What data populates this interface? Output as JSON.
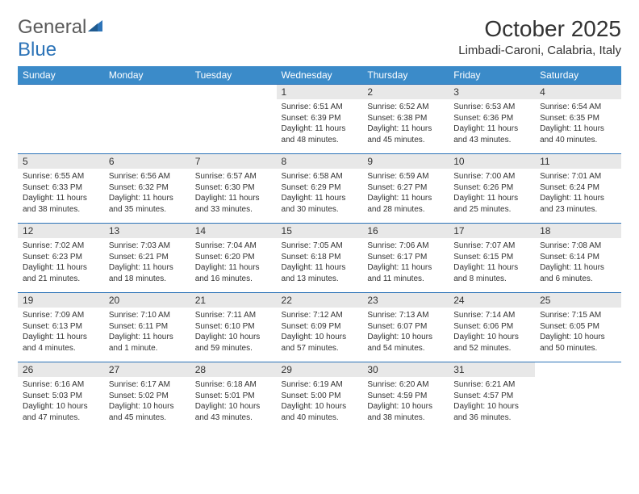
{
  "logo": {
    "text_part1": "General",
    "text_part2": "Blue",
    "color_gray": "#5a5a5a",
    "color_blue": "#2d74b8",
    "triangle_color": "#2d74b8"
  },
  "title": "October 2025",
  "location": "Limbadi-Caroni, Calabria, Italy",
  "header_bg": "#3b8bc9",
  "header_text_color": "#ffffff",
  "daynum_bg": "#e8e8e8",
  "border_color": "#2d74b8",
  "text_color": "#333333",
  "weekdays": [
    "Sunday",
    "Monday",
    "Tuesday",
    "Wednesday",
    "Thursday",
    "Friday",
    "Saturday"
  ],
  "weeks": [
    [
      null,
      null,
      null,
      {
        "n": "1",
        "sunrise": "Sunrise: 6:51 AM",
        "sunset": "Sunset: 6:39 PM",
        "daylight1": "Daylight: 11 hours",
        "daylight2": "and 48 minutes."
      },
      {
        "n": "2",
        "sunrise": "Sunrise: 6:52 AM",
        "sunset": "Sunset: 6:38 PM",
        "daylight1": "Daylight: 11 hours",
        "daylight2": "and 45 minutes."
      },
      {
        "n": "3",
        "sunrise": "Sunrise: 6:53 AM",
        "sunset": "Sunset: 6:36 PM",
        "daylight1": "Daylight: 11 hours",
        "daylight2": "and 43 minutes."
      },
      {
        "n": "4",
        "sunrise": "Sunrise: 6:54 AM",
        "sunset": "Sunset: 6:35 PM",
        "daylight1": "Daylight: 11 hours",
        "daylight2": "and 40 minutes."
      }
    ],
    [
      {
        "n": "5",
        "sunrise": "Sunrise: 6:55 AM",
        "sunset": "Sunset: 6:33 PM",
        "daylight1": "Daylight: 11 hours",
        "daylight2": "and 38 minutes."
      },
      {
        "n": "6",
        "sunrise": "Sunrise: 6:56 AM",
        "sunset": "Sunset: 6:32 PM",
        "daylight1": "Daylight: 11 hours",
        "daylight2": "and 35 minutes."
      },
      {
        "n": "7",
        "sunrise": "Sunrise: 6:57 AM",
        "sunset": "Sunset: 6:30 PM",
        "daylight1": "Daylight: 11 hours",
        "daylight2": "and 33 minutes."
      },
      {
        "n": "8",
        "sunrise": "Sunrise: 6:58 AM",
        "sunset": "Sunset: 6:29 PM",
        "daylight1": "Daylight: 11 hours",
        "daylight2": "and 30 minutes."
      },
      {
        "n": "9",
        "sunrise": "Sunrise: 6:59 AM",
        "sunset": "Sunset: 6:27 PM",
        "daylight1": "Daylight: 11 hours",
        "daylight2": "and 28 minutes."
      },
      {
        "n": "10",
        "sunrise": "Sunrise: 7:00 AM",
        "sunset": "Sunset: 6:26 PM",
        "daylight1": "Daylight: 11 hours",
        "daylight2": "and 25 minutes."
      },
      {
        "n": "11",
        "sunrise": "Sunrise: 7:01 AM",
        "sunset": "Sunset: 6:24 PM",
        "daylight1": "Daylight: 11 hours",
        "daylight2": "and 23 minutes."
      }
    ],
    [
      {
        "n": "12",
        "sunrise": "Sunrise: 7:02 AM",
        "sunset": "Sunset: 6:23 PM",
        "daylight1": "Daylight: 11 hours",
        "daylight2": "and 21 minutes."
      },
      {
        "n": "13",
        "sunrise": "Sunrise: 7:03 AM",
        "sunset": "Sunset: 6:21 PM",
        "daylight1": "Daylight: 11 hours",
        "daylight2": "and 18 minutes."
      },
      {
        "n": "14",
        "sunrise": "Sunrise: 7:04 AM",
        "sunset": "Sunset: 6:20 PM",
        "daylight1": "Daylight: 11 hours",
        "daylight2": "and 16 minutes."
      },
      {
        "n": "15",
        "sunrise": "Sunrise: 7:05 AM",
        "sunset": "Sunset: 6:18 PM",
        "daylight1": "Daylight: 11 hours",
        "daylight2": "and 13 minutes."
      },
      {
        "n": "16",
        "sunrise": "Sunrise: 7:06 AM",
        "sunset": "Sunset: 6:17 PM",
        "daylight1": "Daylight: 11 hours",
        "daylight2": "and 11 minutes."
      },
      {
        "n": "17",
        "sunrise": "Sunrise: 7:07 AM",
        "sunset": "Sunset: 6:15 PM",
        "daylight1": "Daylight: 11 hours",
        "daylight2": "and 8 minutes."
      },
      {
        "n": "18",
        "sunrise": "Sunrise: 7:08 AM",
        "sunset": "Sunset: 6:14 PM",
        "daylight1": "Daylight: 11 hours",
        "daylight2": "and 6 minutes."
      }
    ],
    [
      {
        "n": "19",
        "sunrise": "Sunrise: 7:09 AM",
        "sunset": "Sunset: 6:13 PM",
        "daylight1": "Daylight: 11 hours",
        "daylight2": "and 4 minutes."
      },
      {
        "n": "20",
        "sunrise": "Sunrise: 7:10 AM",
        "sunset": "Sunset: 6:11 PM",
        "daylight1": "Daylight: 11 hours",
        "daylight2": "and 1 minute."
      },
      {
        "n": "21",
        "sunrise": "Sunrise: 7:11 AM",
        "sunset": "Sunset: 6:10 PM",
        "daylight1": "Daylight: 10 hours",
        "daylight2": "and 59 minutes."
      },
      {
        "n": "22",
        "sunrise": "Sunrise: 7:12 AM",
        "sunset": "Sunset: 6:09 PM",
        "daylight1": "Daylight: 10 hours",
        "daylight2": "and 57 minutes."
      },
      {
        "n": "23",
        "sunrise": "Sunrise: 7:13 AM",
        "sunset": "Sunset: 6:07 PM",
        "daylight1": "Daylight: 10 hours",
        "daylight2": "and 54 minutes."
      },
      {
        "n": "24",
        "sunrise": "Sunrise: 7:14 AM",
        "sunset": "Sunset: 6:06 PM",
        "daylight1": "Daylight: 10 hours",
        "daylight2": "and 52 minutes."
      },
      {
        "n": "25",
        "sunrise": "Sunrise: 7:15 AM",
        "sunset": "Sunset: 6:05 PM",
        "daylight1": "Daylight: 10 hours",
        "daylight2": "and 50 minutes."
      }
    ],
    [
      {
        "n": "26",
        "sunrise": "Sunrise: 6:16 AM",
        "sunset": "Sunset: 5:03 PM",
        "daylight1": "Daylight: 10 hours",
        "daylight2": "and 47 minutes."
      },
      {
        "n": "27",
        "sunrise": "Sunrise: 6:17 AM",
        "sunset": "Sunset: 5:02 PM",
        "daylight1": "Daylight: 10 hours",
        "daylight2": "and 45 minutes."
      },
      {
        "n": "28",
        "sunrise": "Sunrise: 6:18 AM",
        "sunset": "Sunset: 5:01 PM",
        "daylight1": "Daylight: 10 hours",
        "daylight2": "and 43 minutes."
      },
      {
        "n": "29",
        "sunrise": "Sunrise: 6:19 AM",
        "sunset": "Sunset: 5:00 PM",
        "daylight1": "Daylight: 10 hours",
        "daylight2": "and 40 minutes."
      },
      {
        "n": "30",
        "sunrise": "Sunrise: 6:20 AM",
        "sunset": "Sunset: 4:59 PM",
        "daylight1": "Daylight: 10 hours",
        "daylight2": "and 38 minutes."
      },
      {
        "n": "31",
        "sunrise": "Sunrise: 6:21 AM",
        "sunset": "Sunset: 4:57 PM",
        "daylight1": "Daylight: 10 hours",
        "daylight2": "and 36 minutes."
      },
      null
    ]
  ]
}
